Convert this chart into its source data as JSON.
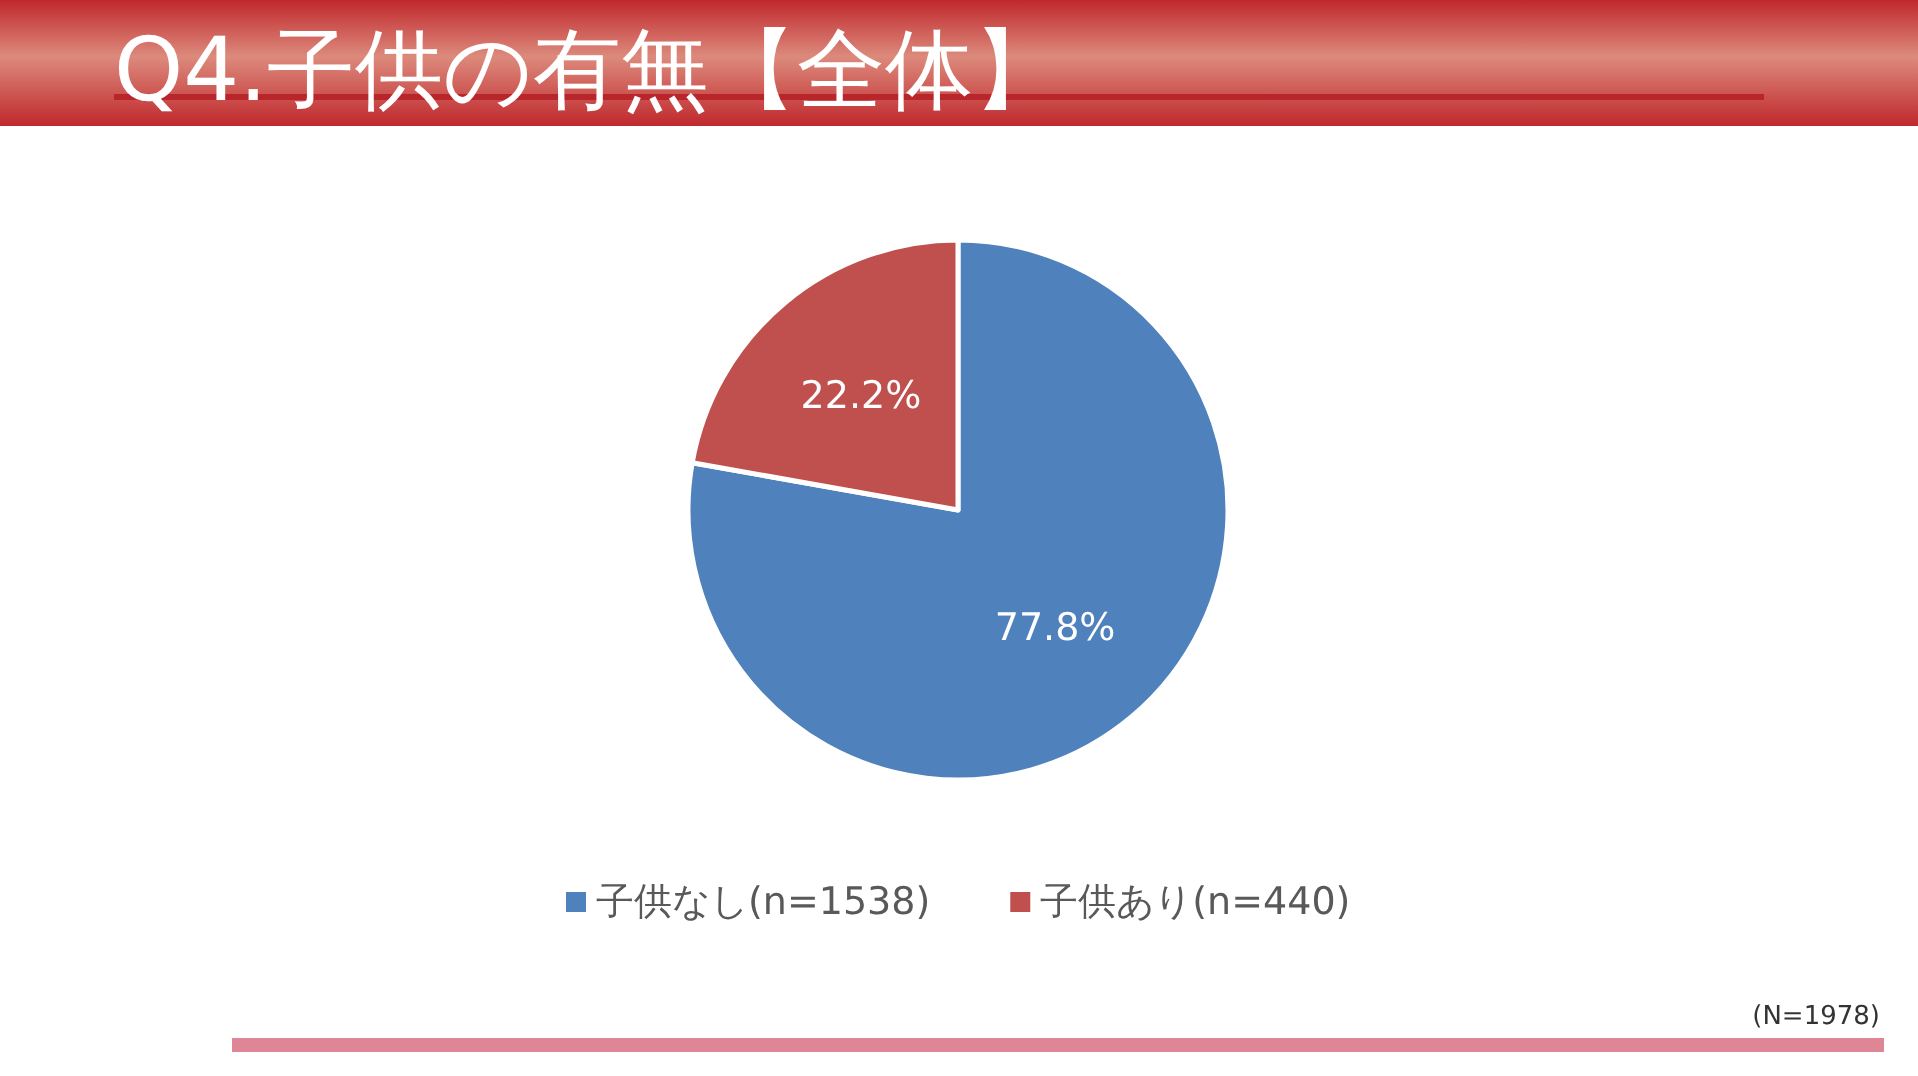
{
  "chart_data": {
    "type": "pie",
    "title": "Q4.子供の有無【全体】",
    "categories": [
      "子供なし(n=1538)",
      "子供あり(n=440)"
    ],
    "values": [
      77.8,
      22.2
    ],
    "colors": [
      "#4f81bd",
      "#c0504d"
    ],
    "value_labels": [
      "77.8%",
      "22.2%"
    ],
    "legend": "bottom",
    "annotations": [
      "(N=1978)"
    ]
  }
}
